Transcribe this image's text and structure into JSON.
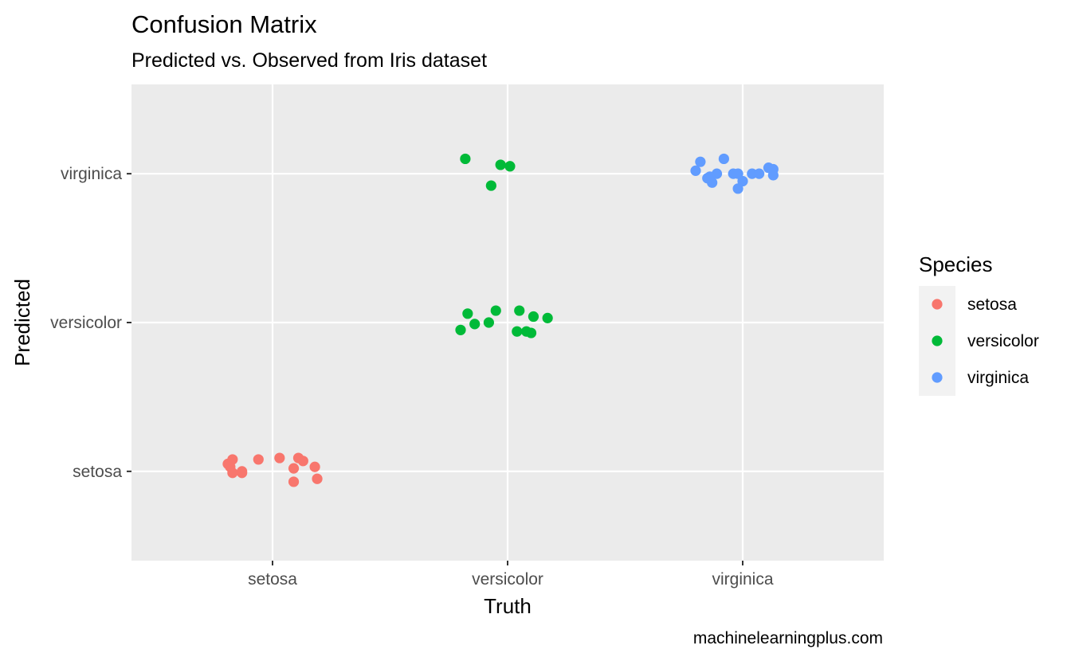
{
  "chart_data": {
    "type": "scatter",
    "title": "Confusion Matrix",
    "subtitle": "Predicted vs. Observed from Iris dataset",
    "xlabel": "Truth",
    "ylabel": "Predicted",
    "caption": "machinelearningplus.com",
    "categories_x": [
      "setosa",
      "versicolor",
      "virginica"
    ],
    "categories_y": [
      "setosa",
      "versicolor",
      "virginica"
    ],
    "jitter": "horizontal and vertical",
    "grid": true,
    "legend": {
      "title": "Species",
      "placement": "right",
      "entries": [
        "setosa",
        "versicolor",
        "virginica"
      ]
    },
    "colors": {
      "setosa": "#F8766D",
      "versicolor": "#00BA38",
      "virginica": "#619CFF",
      "panel": "#EBEBEB",
      "gridline": "#FFFFFF"
    },
    "series": [
      {
        "name": "setosa",
        "points": [
          [
            0.81,
            1.05
          ],
          [
            0.83,
            1.08
          ],
          [
            0.82,
            1.03
          ],
          [
            0.83,
            0.99
          ],
          [
            0.87,
            1.0
          ],
          [
            0.87,
            0.99
          ],
          [
            0.94,
            1.08
          ],
          [
            1.03,
            1.09
          ],
          [
            1.11,
            1.09
          ],
          [
            1.13,
            1.07
          ],
          [
            1.09,
            1.02
          ],
          [
            1.18,
            1.03
          ],
          [
            1.09,
            0.93
          ],
          [
            1.19,
            0.95
          ]
        ]
      },
      {
        "name": "versicolor",
        "points": [
          [
            1.83,
            2.06
          ],
          [
            1.86,
            1.99
          ],
          [
            1.92,
            2.0
          ],
          [
            1.95,
            2.08
          ],
          [
            2.05,
            2.08
          ],
          [
            2.11,
            2.04
          ],
          [
            2.17,
            2.03
          ],
          [
            2.08,
            1.94
          ],
          [
            2.04,
            1.94
          ],
          [
            2.1,
            1.93
          ],
          [
            1.8,
            1.95
          ],
          [
            1.82,
            3.1
          ],
          [
            1.93,
            2.92
          ],
          [
            1.97,
            3.06
          ],
          [
            2.01,
            3.05
          ]
        ]
      },
      {
        "name": "virginica",
        "points": [
          [
            2.8,
            3.02
          ],
          [
            2.82,
            3.08
          ],
          [
            2.85,
            2.97
          ],
          [
            2.87,
            2.94
          ],
          [
            2.89,
            3.0
          ],
          [
            2.92,
            3.1
          ],
          [
            2.96,
            3.0
          ],
          [
            2.98,
            2.9
          ],
          [
            3.0,
            2.95
          ],
          [
            3.04,
            3.0
          ],
          [
            3.11,
            3.04
          ],
          [
            3.13,
            2.99
          ],
          [
            3.13,
            3.03
          ],
          [
            3.07,
            3.0
          ],
          [
            2.86,
            2.98
          ],
          [
            2.98,
            3.0
          ]
        ]
      }
    ]
  }
}
